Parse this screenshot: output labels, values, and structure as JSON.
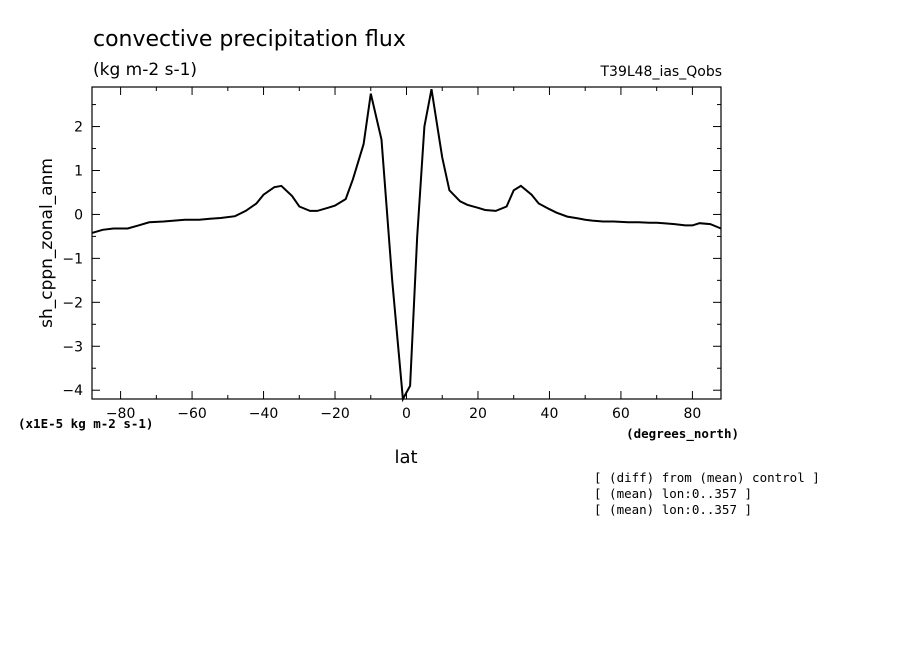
{
  "chart_data": {
    "type": "line",
    "title": "convective precipitation flux",
    "subtitle": "(kg m-2 s-1)",
    "dataset_label": "T39L48_ias_Qobs",
    "xlabel": "lat",
    "xunits": "(degrees_north)",
    "ylabel": "sh_cppn_zonal_anm",
    "yscale_label": "(x1E-5 kg m-2 s-1)",
    "xlim": [
      -88,
      88
    ],
    "ylim": [
      -4.2,
      2.9
    ],
    "xticks": [
      -80,
      -60,
      -40,
      -20,
      0,
      20,
      40,
      60,
      80
    ],
    "yticks": [
      -4,
      -3,
      -2,
      -1,
      0,
      1,
      2
    ],
    "grid": false,
    "x": [
      -88,
      -85,
      -82,
      -78,
      -75,
      -72,
      -68,
      -65,
      -62,
      -58,
      -55,
      -52,
      -48,
      -45,
      -42,
      -40,
      -37,
      -35,
      -32,
      -30,
      -27,
      -25,
      -22,
      -20,
      -17,
      -15,
      -12,
      -10,
      -7,
      -4,
      -1,
      1,
      3,
      5,
      7,
      10,
      12,
      15,
      17,
      20,
      22,
      25,
      28,
      30,
      32,
      35,
      37,
      40,
      42,
      45,
      48,
      50,
      52,
      55,
      58,
      60,
      62,
      65,
      68,
      70,
      72,
      75,
      78,
      80,
      82,
      85,
      88
    ],
    "series": [
      {
        "values": [
          -0.42,
          -0.35,
          -0.32,
          -0.32,
          -0.25,
          -0.18,
          -0.16,
          -0.14,
          -0.12,
          -0.12,
          -0.1,
          -0.08,
          -0.04,
          0.08,
          0.25,
          0.45,
          0.62,
          0.65,
          0.42,
          0.18,
          0.08,
          0.08,
          0.15,
          0.2,
          0.35,
          0.8,
          1.6,
          2.75,
          1.7,
          -1.5,
          -4.2,
          -3.9,
          -0.5,
          2.0,
          2.85,
          1.3,
          0.55,
          0.3,
          0.22,
          0.15,
          0.1,
          0.08,
          0.18,
          0.55,
          0.65,
          0.45,
          0.25,
          0.12,
          0.04,
          -0.05,
          -0.09,
          -0.12,
          -0.14,
          -0.16,
          -0.16,
          -0.17,
          -0.18,
          -0.18,
          -0.19,
          -0.19,
          -0.2,
          -0.22,
          -0.25,
          -0.25,
          -0.2,
          -0.22,
          -0.32
        ]
      }
    ]
  },
  "notes": [
    "[ (diff) from (mean) control ]",
    "[ (mean) lon:0..357 ]",
    "[ (mean) lon:0..357 ]"
  ]
}
